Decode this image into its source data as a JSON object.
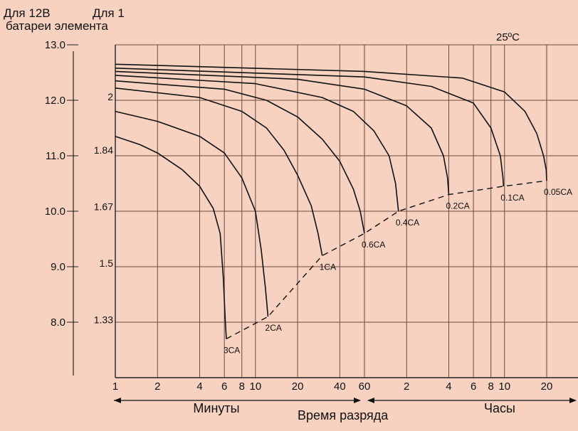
{
  "header": {
    "volt12_label": "Для 12В",
    "cell_label_line1": "Для 1",
    "cell_label_line2": "батареи элемента",
    "temperature": "25ºC"
  },
  "chart_data": {
    "type": "line",
    "title": "",
    "xlabel": "Время разряда",
    "x_scale": "log",
    "x_segments": [
      {
        "label": "Минуты",
        "unit": "min",
        "ticks": [
          "1",
          "2",
          "4",
          "6",
          "8",
          "10",
          "20",
          "40",
          "60"
        ]
      },
      {
        "label": "Часы",
        "unit": "h",
        "ticks": [
          "2",
          "4",
          "6",
          "8",
          "10",
          "20"
        ]
      }
    ],
    "xlim_minutes": [
      1,
      1800
    ],
    "ylim": [
      7.0,
      13.0
    ],
    "y_ticks_12v": [
      "13.0",
      "12.0",
      "11.0",
      "10.0",
      "9.0",
      "8.0"
    ],
    "y_ticks_cell": [
      {
        "label": "2",
        "value": 12.0
      },
      {
        "label": "1.84",
        "value": 11.04
      },
      {
        "label": "1.67",
        "value": 10.02
      },
      {
        "label": "1.5",
        "value": 9.0
      },
      {
        "label": "1.33",
        "value": 7.98
      }
    ],
    "grid": true,
    "series": [
      {
        "name": "3CA",
        "end_label": "3CA",
        "points": [
          [
            1,
            11.35
          ],
          [
            1.5,
            11.2
          ],
          [
            2,
            11.05
          ],
          [
            3,
            10.75
          ],
          [
            4,
            10.45
          ],
          [
            5,
            10.05
          ],
          [
            5.6,
            9.6
          ],
          [
            5.9,
            8.8
          ],
          [
            6.1,
            8.0
          ],
          [
            6.2,
            7.7
          ]
        ]
      },
      {
        "name": "2CA",
        "end_label": "2CA",
        "points": [
          [
            1,
            11.8
          ],
          [
            2,
            11.62
          ],
          [
            4,
            11.35
          ],
          [
            6,
            11.05
          ],
          [
            8,
            10.6
          ],
          [
            10,
            10.0
          ],
          [
            11,
            9.3
          ],
          [
            11.8,
            8.6
          ],
          [
            12.3,
            8.1
          ]
        ]
      },
      {
        "name": "1CA",
        "end_label": "1CA",
        "points": [
          [
            1,
            12.22
          ],
          [
            4,
            12.05
          ],
          [
            8,
            11.8
          ],
          [
            12,
            11.5
          ],
          [
            16,
            11.1
          ],
          [
            20,
            10.65
          ],
          [
            25,
            10.1
          ],
          [
            28,
            9.6
          ],
          [
            30,
            9.2
          ]
        ]
      },
      {
        "name": "0.6CA",
        "end_label": "0.6CA",
        "points": [
          [
            1,
            12.35
          ],
          [
            6,
            12.2
          ],
          [
            12,
            12.0
          ],
          [
            20,
            11.7
          ],
          [
            30,
            11.3
          ],
          [
            40,
            10.9
          ],
          [
            50,
            10.4
          ],
          [
            56,
            10.0
          ],
          [
            60,
            9.6
          ]
        ]
      },
      {
        "name": "0.4CA",
        "end_label": "0.4CA",
        "points": [
          [
            1,
            12.45
          ],
          [
            10,
            12.3
          ],
          [
            30,
            12.05
          ],
          [
            50,
            11.8
          ],
          [
            70,
            11.45
          ],
          [
            90,
            11.0
          ],
          [
            100,
            10.5
          ],
          [
            105,
            10.0
          ]
        ]
      },
      {
        "name": "0.2CA",
        "end_label": "0.2CA",
        "points": [
          [
            1,
            12.52
          ],
          [
            20,
            12.38
          ],
          [
            60,
            12.2
          ],
          [
            120,
            11.9
          ],
          [
            180,
            11.5
          ],
          [
            220,
            11.0
          ],
          [
            235,
            10.6
          ],
          [
            240,
            10.3
          ]
        ]
      },
      {
        "name": "0.1CA",
        "end_label": "0.1CA",
        "points": [
          [
            1,
            12.58
          ],
          [
            60,
            12.42
          ],
          [
            180,
            12.25
          ],
          [
            360,
            11.95
          ],
          [
            480,
            11.5
          ],
          [
            560,
            11.0
          ],
          [
            585,
            10.6
          ],
          [
            590,
            10.45
          ]
        ]
      },
      {
        "name": "0.05CA",
        "end_label": "0.05CA",
        "points": [
          [
            1,
            12.65
          ],
          [
            60,
            12.52
          ],
          [
            300,
            12.4
          ],
          [
            600,
            12.15
          ],
          [
            840,
            11.8
          ],
          [
            1020,
            11.4
          ],
          [
            1140,
            11.0
          ],
          [
            1190,
            10.75
          ],
          [
            1200,
            10.55
          ]
        ]
      }
    ],
    "end_voltage_curve": {
      "style": "dashed",
      "points": [
        [
          6.2,
          7.7
        ],
        [
          12.3,
          8.1
        ],
        [
          30,
          9.2
        ],
        [
          60,
          9.6
        ],
        [
          105,
          10.0
        ],
        [
          240,
          10.3
        ],
        [
          590,
          10.45
        ],
        [
          1200,
          10.55
        ]
      ]
    }
  }
}
